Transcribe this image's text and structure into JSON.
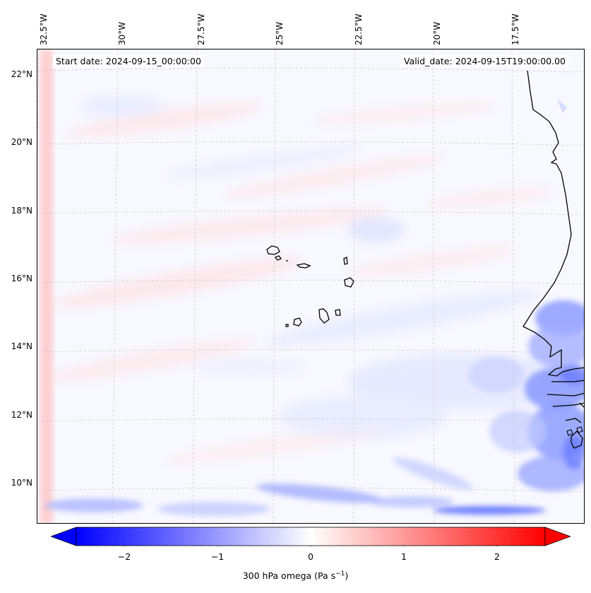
{
  "map": {
    "start_date": "Start date: 2024-09-15_00:00:00",
    "valid_date": "Valid_date: 2024-09-15T19:00:00.00",
    "lon_labels": [
      "32.5°W",
      "30°W",
      "27.5°W",
      "25°W",
      "22.5°W",
      "20°W",
      "17.5°W"
    ],
    "lat_labels": [
      "22°N",
      "20°N",
      "18°N",
      "16°N",
      "14°N",
      "12°N",
      "10°N"
    ],
    "variable": "300 hPa omega",
    "colors": {
      "negative": "#0000ff",
      "neutral": "#ffffff",
      "positive": "#ff0000",
      "coast": "#000000",
      "grid": "#bbbbbb"
    }
  },
  "colorbar": {
    "label_prefix": "300 hPa omega (Pa s",
    "label_exp": "−1",
    "label_suffix": ")",
    "ticks": [
      "−2",
      "−1",
      "0",
      "1",
      "2"
    ],
    "range": [
      -2.5,
      2.5
    ],
    "extend": "both"
  }
}
